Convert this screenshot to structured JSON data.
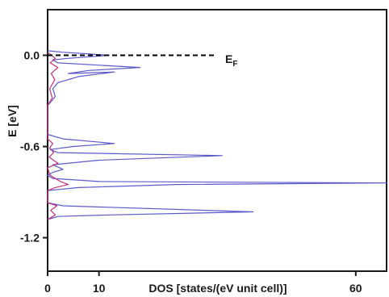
{
  "chart_data": {
    "type": "line",
    "xlabel": "DOS [states/(eV unit cell)]",
    "ylabel": "E [eV]",
    "xlim": [
      0,
      66
    ],
    "ylim": [
      -1.42,
      0.3
    ],
    "x_ticks": [
      0,
      10,
      60
    ],
    "y_ticks": [
      0.0,
      -0.6,
      -1.2
    ],
    "x_tick_labels": [
      "0",
      "10",
      "60"
    ],
    "y_tick_labels": [
      "0.0",
      "-0.6",
      "-1.2"
    ],
    "reference_line": {
      "label": "E",
      "subscript": "F",
      "y": 0.0,
      "x_range": [
        0,
        33
      ],
      "color": "#000000",
      "style": "dashed"
    },
    "series": [
      {
        "color": "#5a5ac8",
        "points": [
          [
            0,
            0.03
          ],
          [
            3,
            0.02
          ],
          [
            12,
            0.0
          ],
          [
            4,
            -0.02
          ],
          [
            1,
            -0.03
          ],
          [
            2,
            -0.05
          ],
          [
            18,
            -0.08
          ],
          [
            8,
            -0.1
          ],
          [
            4,
            -0.12
          ],
          [
            13,
            -0.11
          ],
          [
            6,
            -0.14
          ],
          [
            2,
            -0.18
          ],
          [
            1,
            -0.22
          ],
          [
            1.5,
            -0.27
          ],
          [
            0.8,
            -0.3
          ],
          [
            0,
            -0.33
          ],
          [
            0,
            -0.52
          ],
          [
            3,
            -0.55
          ],
          [
            13,
            -0.58
          ],
          [
            5,
            -0.6
          ],
          [
            0.5,
            -0.62
          ],
          [
            2,
            -0.64
          ],
          [
            34,
            -0.66
          ],
          [
            10,
            -0.69
          ],
          [
            1,
            -0.72
          ],
          [
            3,
            -0.75
          ],
          [
            1,
            -0.77
          ],
          [
            0,
            -0.79
          ],
          [
            1,
            -0.81
          ],
          [
            10,
            -0.83
          ],
          [
            66,
            -0.84
          ],
          [
            25,
            -0.85
          ],
          [
            6,
            -0.87
          ],
          [
            0,
            -0.89
          ],
          [
            0,
            -0.97
          ],
          [
            3,
            -0.99
          ],
          [
            40,
            -1.03
          ],
          [
            12,
            -1.05
          ],
          [
            2,
            -1.06
          ],
          [
            0,
            -1.08
          ]
        ]
      },
      {
        "color": "#c4307a",
        "points": [
          [
            0,
            0.02
          ],
          [
            1.5,
            -0.02
          ],
          [
            0.5,
            -0.05
          ],
          [
            2,
            -0.08
          ],
          [
            0.7,
            -0.12
          ],
          [
            1.4,
            -0.16
          ],
          [
            0.4,
            -0.22
          ],
          [
            0.9,
            -0.28
          ],
          [
            0,
            -0.33
          ],
          [
            0,
            -0.55
          ],
          [
            1,
            -0.58
          ],
          [
            0.4,
            -0.61
          ],
          [
            1.2,
            -0.64
          ],
          [
            0.3,
            -0.67
          ],
          [
            2,
            -0.71
          ],
          [
            0,
            -0.74
          ],
          [
            0.5,
            -0.79
          ],
          [
            2.5,
            -0.83
          ],
          [
            4,
            -0.85
          ],
          [
            1.5,
            -0.87
          ],
          [
            0,
            -0.89
          ],
          [
            0,
            -0.97
          ],
          [
            1.8,
            -0.99
          ],
          [
            0.6,
            -1.02
          ],
          [
            1.5,
            -1.05
          ],
          [
            0,
            -1.08
          ]
        ]
      }
    ]
  }
}
